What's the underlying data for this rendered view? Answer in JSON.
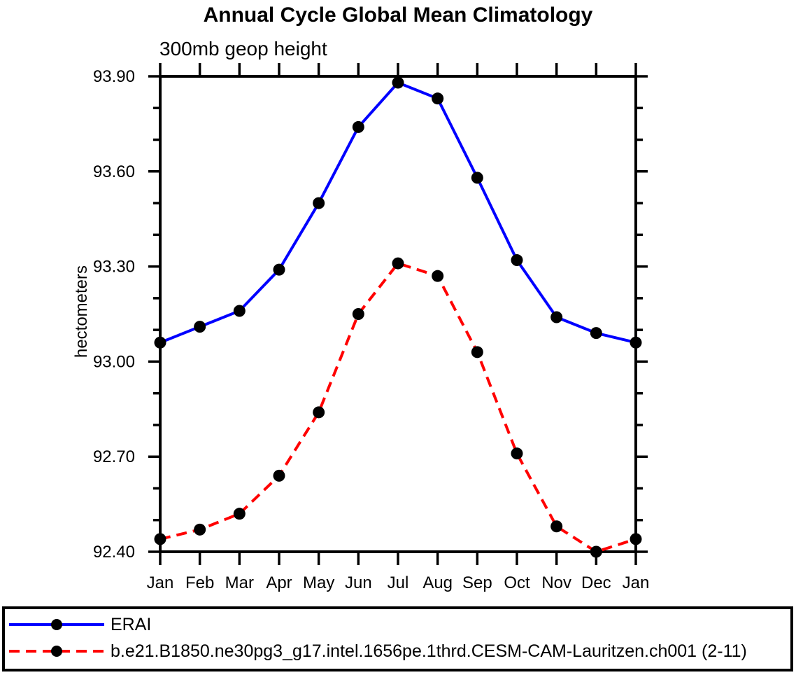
{
  "chart_data": {
    "type": "line",
    "title": "Annual Cycle Global Mean Climatology",
    "subtitle": "300mb geop height",
    "ylabel": "hectometers",
    "x_categories": [
      "Jan",
      "Feb",
      "Mar",
      "Apr",
      "May",
      "Jun",
      "Jul",
      "Aug",
      "Sep",
      "Oct",
      "Nov",
      "Dec",
      "Jan"
    ],
    "ylim": [
      92.4,
      93.9
    ],
    "yticks_major": [
      92.4,
      92.7,
      93.0,
      93.3,
      93.6,
      93.9
    ],
    "ytick_labels": [
      "92.40",
      "92.70",
      "93.00",
      "93.30",
      "93.60",
      "93.90"
    ],
    "ytick_minor_step": 0.1,
    "grid": false,
    "legend_position": "bottom-box",
    "frame_color": "#000000",
    "series": [
      {
        "name": "ERAI",
        "color": "#0000ff",
        "line_style": "solid",
        "marker": "filled-circle",
        "marker_color": "#000000",
        "values": [
          93.06,
          93.11,
          93.16,
          93.29,
          93.5,
          93.74,
          93.88,
          93.83,
          93.58,
          93.32,
          93.14,
          93.09,
          93.06
        ]
      },
      {
        "name": "b.e21.B1850.ne30pg3_g17.intel.1656pe.1thrd.CESM-CAM-Lauritzen.ch001 (2-11)",
        "color": "#ff0000",
        "line_style": "dashed",
        "marker": "filled-circle",
        "marker_color": "#000000",
        "values": [
          92.44,
          92.47,
          92.52,
          92.64,
          92.84,
          93.15,
          93.31,
          93.27,
          93.03,
          92.71,
          92.48,
          92.4,
          92.44
        ]
      }
    ]
  }
}
